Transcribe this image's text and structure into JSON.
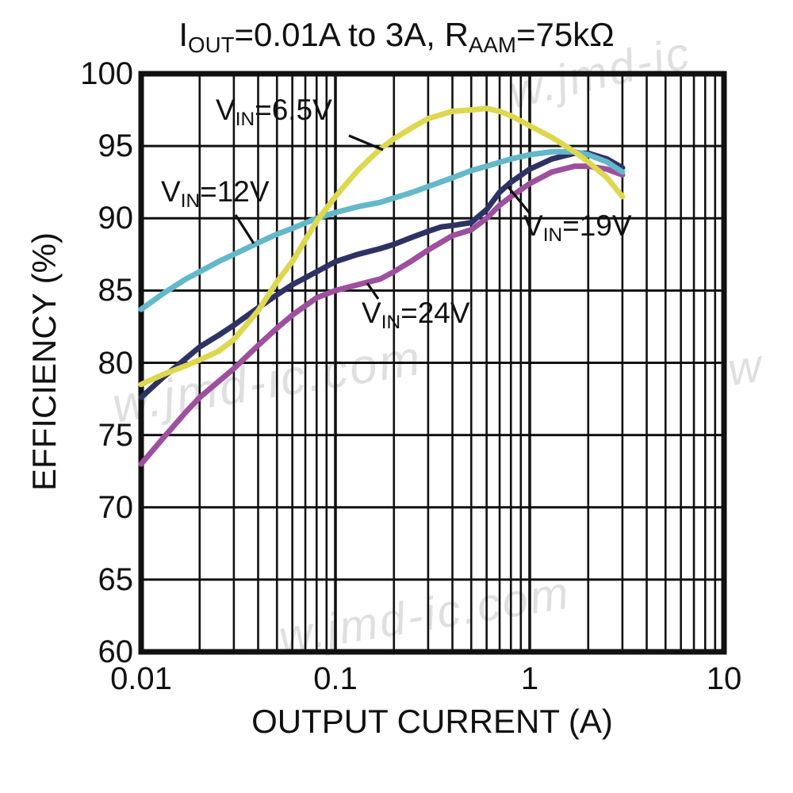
{
  "title": {
    "part1": "I",
    "sub1": "OUT",
    "part2": "=0.01A to 3A, R",
    "sub2": "AAM",
    "part3": "=75kΩ"
  },
  "axes": {
    "ylabel": "EFFICIENCY (%)",
    "xlabel": "OUTPUT CURRENT (A)",
    "y_ticks": [
      100,
      95,
      90,
      85,
      80,
      75,
      70,
      65,
      60
    ],
    "x_ticks": [
      "0.01",
      "0.1",
      "1",
      "10"
    ],
    "x_tick_values": [
      0.01,
      0.1,
      1,
      10
    ]
  },
  "labels": [
    {
      "prefix": "V",
      "sub": "IN",
      "rest": "=6.5V"
    },
    {
      "prefix": "V",
      "sub": "IN",
      "rest": "=12V"
    },
    {
      "prefix": "V",
      "sub": "IN",
      "rest": "=19V"
    },
    {
      "prefix": "V",
      "sub": "IN",
      "rest": "=24V"
    }
  ],
  "watermarks": [
    {
      "text": "w.jmd-ic.com"
    },
    {
      "text": "w.jmd-ic.com"
    },
    {
      "text": "w.jmd-ic"
    },
    {
      "text": "w"
    }
  ],
  "chart_data": {
    "type": "line",
    "title": "IOUT=0.01A to 3A, RAAM=75kOhm",
    "xlabel": "OUTPUT CURRENT (A)",
    "ylabel": "EFFICIENCY (%)",
    "x_scale": "log",
    "xlim": [
      0.01,
      10
    ],
    "ylim": [
      60,
      100
    ],
    "grid": "full black grid, log minor vertical lines, horizontal every 5%",
    "legend_position": "inline annotations with leader lines",
    "series": [
      {
        "name": "VIN=19V",
        "color": "#2e3263",
        "x": [
          0.01,
          0.013,
          0.017,
          0.02,
          0.025,
          0.03,
          0.04,
          0.05,
          0.06,
          0.08,
          0.1,
          0.13,
          0.17,
          0.2,
          0.25,
          0.3,
          0.35,
          0.4,
          0.5,
          0.6,
          0.7,
          0.8,
          1,
          1.3,
          1.7,
          2,
          2.5,
          3
        ],
        "y": [
          77.6,
          79.0,
          80.3,
          81.1,
          81.9,
          82.6,
          83.8,
          84.7,
          85.4,
          86.3,
          87.0,
          87.5,
          87.9,
          88.2,
          88.7,
          89.1,
          89.4,
          89.5,
          89.7,
          90.6,
          91.8,
          92.5,
          93.4,
          94.1,
          94.5,
          94.5,
          94.1,
          93.5
        ]
      },
      {
        "name": "VIN=24V",
        "color": "#9e4f9e",
        "x": [
          0.01,
          0.013,
          0.017,
          0.02,
          0.025,
          0.03,
          0.04,
          0.05,
          0.06,
          0.08,
          0.1,
          0.13,
          0.17,
          0.2,
          0.25,
          0.3,
          0.4,
          0.5,
          0.6,
          0.7,
          0.8,
          1,
          1.3,
          1.7,
          2,
          2.5,
          3
        ],
        "y": [
          73.0,
          74.8,
          76.6,
          77.6,
          78.7,
          79.6,
          81.2,
          82.4,
          83.3,
          84.5,
          85.0,
          85.4,
          85.8,
          86.3,
          87.1,
          87.8,
          88.8,
          89.2,
          90.0,
          90.9,
          91.5,
          92.4,
          93.2,
          93.6,
          93.6,
          93.4,
          93.0
        ]
      },
      {
        "name": "VIN=12V",
        "color": "#63b8c9",
        "x": [
          0.01,
          0.013,
          0.017,
          0.02,
          0.025,
          0.03,
          0.04,
          0.05,
          0.06,
          0.08,
          0.1,
          0.13,
          0.17,
          0.2,
          0.25,
          0.3,
          0.4,
          0.5,
          0.6,
          0.8,
          1,
          1.3,
          1.7,
          2,
          2.5,
          3
        ],
        "y": [
          83.7,
          84.8,
          85.8,
          86.3,
          87.0,
          87.5,
          88.3,
          88.9,
          89.3,
          90.0,
          90.4,
          90.8,
          91.1,
          91.4,
          91.8,
          92.2,
          92.8,
          93.3,
          93.6,
          94.1,
          94.4,
          94.6,
          94.6,
          94.4,
          93.9,
          93.2
        ]
      },
      {
        "name": "VIN=6.5V",
        "color": "#ddd84f",
        "x": [
          0.01,
          0.013,
          0.017,
          0.02,
          0.025,
          0.03,
          0.04,
          0.05,
          0.06,
          0.08,
          0.1,
          0.13,
          0.17,
          0.2,
          0.25,
          0.3,
          0.4,
          0.5,
          0.6,
          0.7,
          0.8,
          1,
          1.3,
          1.7,
          2,
          2.5,
          3
        ],
        "y": [
          78.5,
          79.2,
          79.8,
          80.2,
          80.8,
          81.6,
          83.6,
          85.6,
          87.0,
          89.8,
          91.5,
          93.3,
          94.8,
          95.5,
          96.3,
          96.9,
          97.4,
          97.5,
          97.6,
          97.4,
          97.1,
          96.4,
          95.6,
          94.6,
          93.9,
          92.8,
          91.5
        ]
      }
    ]
  }
}
